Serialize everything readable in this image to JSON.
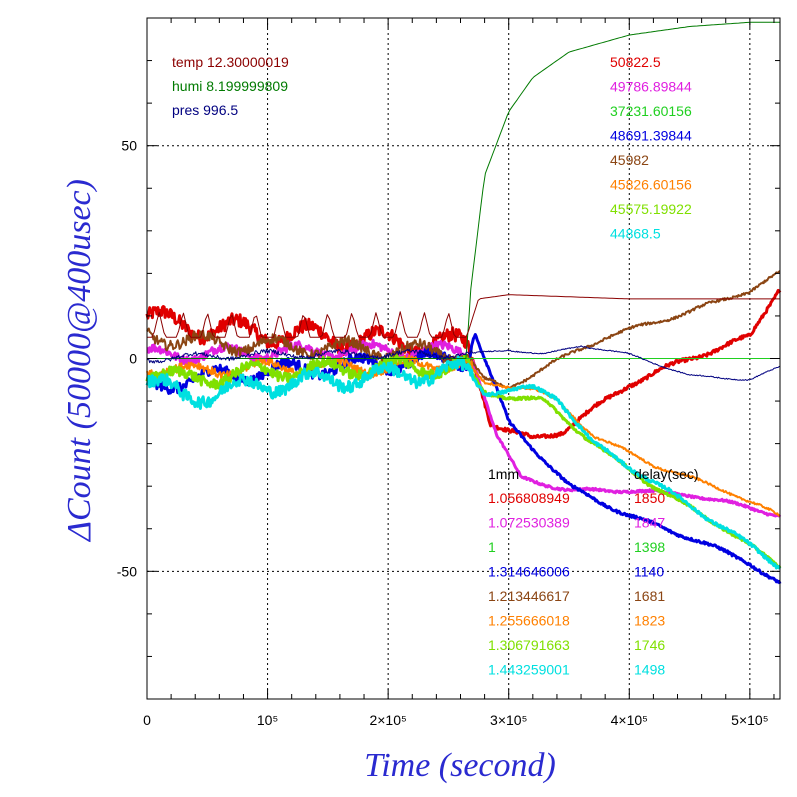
{
  "chart_data": {
    "type": "line",
    "xlabel": "Time (second)",
    "ylabel": "ΔCount (50000@400usec)",
    "xlim": [
      0,
      525000
    ],
    "ylim": [
      -80,
      80
    ],
    "x_ticks": [
      {
        "value": 0,
        "label": "0"
      },
      {
        "value": 100000,
        "label": "10⁵"
      },
      {
        "value": 200000,
        "label": "2×10⁵"
      },
      {
        "value": 300000,
        "label": "3×10⁵"
      },
      {
        "value": 400000,
        "label": "4×10⁵"
      },
      {
        "value": 500000,
        "label": "5×10⁵"
      }
    ],
    "y_ticks": [
      {
        "value": -50,
        "label": "-50"
      },
      {
        "value": 0,
        "label": "0"
      },
      {
        "value": 50,
        "label": "50"
      }
    ],
    "grid": true,
    "env_legend": [
      {
        "text": "temp 12.30000019",
        "color": "#8b0000"
      },
      {
        "text": "humi 8.199999809",
        "color": "#007a00"
      },
      {
        "text": "pres 996.5",
        "color": "#000080"
      }
    ],
    "count_legend": [
      {
        "text": "50822.5",
        "color": "#e00000"
      },
      {
        "text": "49786.89844",
        "color": "#e020e0"
      },
      {
        "text": "37231.60156",
        "color": "#20d020"
      },
      {
        "text": "48691.39844",
        "color": "#0000e0"
      },
      {
        "text": "45982",
        "color": "#8b4513"
      },
      {
        "text": "45826.60156",
        "color": "#ff8000"
      },
      {
        "text": "45575.19922",
        "color": "#80e000"
      },
      {
        "text": "44868.5",
        "color": "#00e0e0"
      }
    ],
    "table_headers": [
      "1mm",
      "delay(sec)"
    ],
    "table_rows": [
      {
        "factor": "1.056808949",
        "delay": "1850",
        "color": "#e00000"
      },
      {
        "factor": "1.072530389",
        "delay": "1847",
        "color": "#e020e0"
      },
      {
        "factor": "1",
        "delay": "1398",
        "color": "#20d020"
      },
      {
        "factor": "1.314646006",
        "delay": "1140",
        "color": "#0000e0"
      },
      {
        "factor": "1.213446617",
        "delay": "1681",
        "color": "#8b4513"
      },
      {
        "factor": "1.255666018",
        "delay": "1823",
        "color": "#ff8000"
      },
      {
        "factor": "1.306791663",
        "delay": "1746",
        "color": "#80e000"
      },
      {
        "factor": "1.443259001",
        "delay": "1498",
        "color": "#00e0e0"
      }
    ],
    "series": [
      {
        "color": "#e00000",
        "noise": 1.6,
        "width": 3,
        "x": [
          0,
          20000,
          60000,
          100000,
          150000,
          200000,
          240000,
          265000,
          270000,
          285000,
          300000,
          320000,
          345000,
          370000,
          400000,
          450000,
          500000,
          525000
        ],
        "y": [
          10,
          8,
          7,
          6,
          5,
          4,
          3.5,
          3,
          0,
          -15,
          -17,
          -19,
          -17,
          -12,
          -6,
          0,
          5,
          17
        ]
      },
      {
        "color": "#e020e0",
        "noise": 1.0,
        "width": 3,
        "x": [
          0,
          30000,
          100000,
          200000,
          265000,
          270000,
          290000,
          310000,
          350000,
          400000,
          450000,
          500000,
          525000
        ],
        "y": [
          1,
          1,
          1.5,
          2,
          1.5,
          0,
          -18,
          -28,
          -31,
          -31,
          -32,
          -35,
          -37
        ]
      },
      {
        "color": "#0000e0",
        "noise": 1.2,
        "width": 3,
        "x": [
          0,
          30000,
          100000,
          200000,
          265000,
          272000,
          280000,
          300000,
          350000,
          400000,
          450000,
          500000,
          525000
        ],
        "y": [
          -7,
          -5,
          -3,
          -1,
          0,
          6,
          0,
          -15,
          -30,
          -37,
          -42,
          -48,
          -53
        ]
      },
      {
        "color": "#8b4513",
        "noise": 1.2,
        "width": 2,
        "x": [
          0,
          30000,
          100000,
          200000,
          265000,
          280000,
          300000,
          330000,
          380000,
          450000,
          500000,
          525000
        ],
        "y": [
          6,
          4,
          3,
          2,
          1,
          -5,
          -7,
          -2,
          5,
          11,
          16,
          20
        ]
      },
      {
        "color": "#ff8000",
        "noise": 1.0,
        "width": 2,
        "x": [
          0,
          30000,
          100000,
          200000,
          265000,
          280000,
          320000,
          340000,
          370000,
          420000,
          480000,
          525000
        ],
        "y": [
          -2,
          -3,
          -2,
          -2,
          -1,
          -6,
          -7,
          -10,
          -18,
          -25,
          -31,
          -37
        ]
      },
      {
        "color": "#80e000",
        "noise": 1.2,
        "width": 3,
        "x": [
          0,
          30000,
          100000,
          200000,
          265000,
          280000,
          300000,
          330000,
          370000,
          420000,
          480000,
          525000
        ],
        "y": [
          -3,
          -5,
          -3,
          -2,
          -2,
          -8,
          -9,
          -10,
          -20,
          -30,
          -40,
          -49
        ]
      },
      {
        "color": "#00e0e0",
        "noise": 1.4,
        "width": 3,
        "x": [
          0,
          30000,
          100000,
          200000,
          265000,
          280000,
          320000,
          340000,
          370000,
          420000,
          480000,
          525000
        ],
        "y": [
          -5,
          -9,
          -6,
          -4,
          -3,
          -8,
          -7,
          -9,
          -20,
          -29,
          -40,
          -49
        ]
      },
      {
        "color": "#20d020",
        "noise": 0,
        "width": 1,
        "x": [
          0,
          525000
        ],
        "y": [
          0,
          0
        ]
      },
      {
        "color": "#007a00",
        "noise": 0,
        "width": 1,
        "x": [
          0,
          265000,
          268000,
          280000,
          300000,
          320000,
          350000,
          400000,
          450000,
          500000,
          525000
        ],
        "y": [
          0,
          0,
          15,
          43,
          58,
          66,
          72,
          76,
          78,
          79,
          79
        ]
      },
      {
        "color": "#8b0000",
        "noise": 0,
        "width": 1,
        "spikes": true,
        "x": [
          0,
          265000,
          275000,
          300000,
          400000,
          525000
        ],
        "y": [
          5,
          5,
          14,
          15,
          14,
          14
        ]
      },
      {
        "color": "#000080",
        "noise": 0.5,
        "width": 1,
        "x": [
          0,
          100000,
          265000,
          300000,
          330000,
          360000,
          400000,
          450000,
          500000,
          525000
        ],
        "y": [
          0,
          1,
          1,
          2,
          1,
          3,
          1,
          -4,
          -5,
          -2
        ]
      }
    ]
  }
}
